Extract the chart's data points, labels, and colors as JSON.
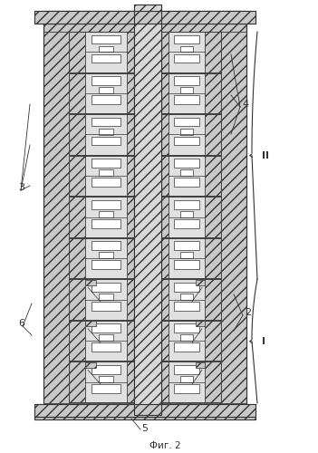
{
  "title": "Фиг. 2",
  "bg_color": "#ffffff",
  "line_color": "#333333",
  "hatch_fc": "#c8c8c8",
  "white_fc": "#ffffff",
  "shaft_fc": "#d0d0d0",
  "num_stages_II": 6,
  "num_stages_I": 3,
  "fig_w": 3.51,
  "fig_h": 5.0,
  "dpi": 100,
  "bracket_II_label": "II",
  "bracket_I_label": "I",
  "label_2": "2",
  "label_3": "3",
  "label_4": "4",
  "label_5": "5",
  "label_6": "6"
}
